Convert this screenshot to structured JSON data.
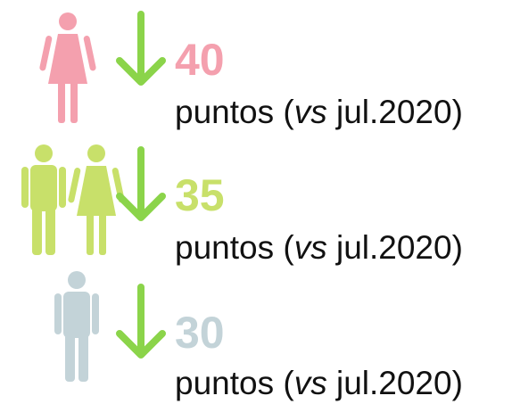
{
  "rows": [
    {
      "value": 40,
      "text": [
        "puntos (",
        "vs",
        " jul.2020)"
      ]
    },
    {
      "value": 35,
      "text": [
        "puntos (",
        "vs",
        " jul.2020)"
      ]
    },
    {
      "value": 30,
      "text": [
        "puntos (",
        "vs",
        " jul.2020)"
      ]
    }
  ]
}
